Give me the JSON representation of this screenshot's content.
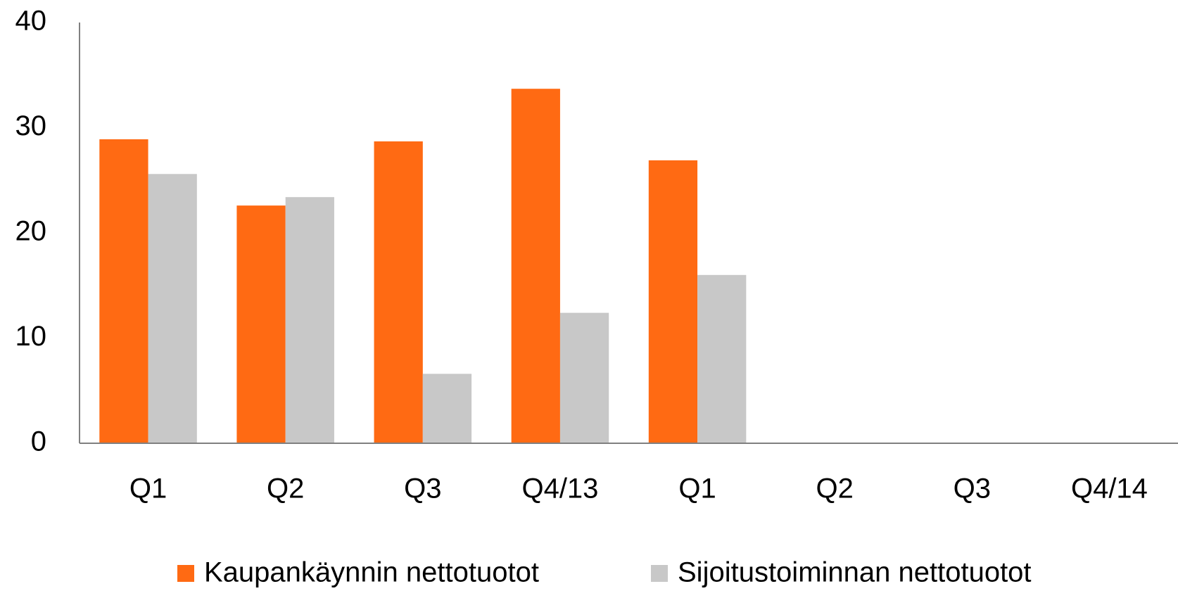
{
  "chart_data": {
    "type": "bar",
    "categories": [
      "Q1",
      "Q2",
      "Q3",
      "Q4/13",
      "Q1",
      "Q2",
      "Q3",
      "Q4/14"
    ],
    "series": [
      {
        "name": "Kaupankäynnin nettotuotot",
        "color": "#ff6a13",
        "values": [
          28.9,
          22.6,
          28.7,
          33.7,
          26.9,
          null,
          null,
          null
        ]
      },
      {
        "name": "Sijoitustoiminnan nettotuotot",
        "color": "#c8c8c8",
        "values": [
          25.6,
          23.4,
          6.6,
          12.4,
          16.0,
          null,
          null,
          null
        ]
      }
    ],
    "ylim": [
      0,
      40
    ],
    "yticks": [
      0,
      10,
      20,
      30,
      40
    ],
    "grid": false,
    "legend": "bottom"
  }
}
